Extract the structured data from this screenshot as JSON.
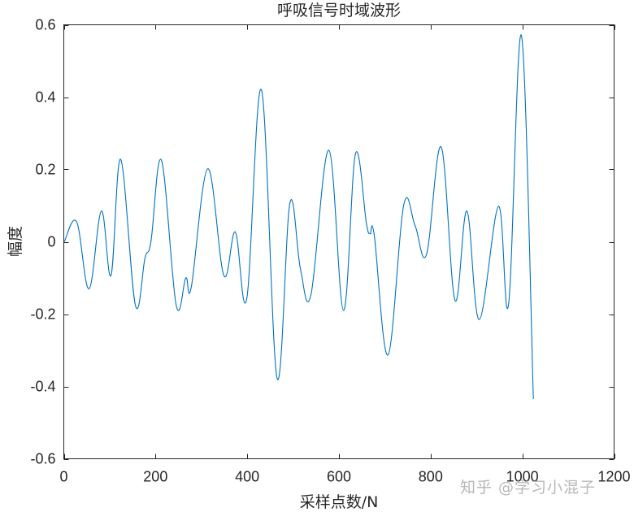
{
  "chart_data": {
    "type": "line",
    "title": "呼吸信号时域波形",
    "xlabel": "采样点数/N",
    "ylabel": "幅度",
    "xlim": [
      0,
      1200
    ],
    "ylim": [
      -0.6,
      0.6
    ],
    "xticks": [
      0,
      200,
      400,
      600,
      800,
      1000,
      1200
    ],
    "yticks": [
      -0.6,
      -0.4,
      -0.2,
      0,
      0.2,
      0.4,
      0.6
    ],
    "xtick_labels": [
      "0",
      "200",
      "400",
      "600",
      "800",
      "1000",
      "1200"
    ],
    "ytick_labels": [
      "-0.6",
      "-0.4",
      "-0.2",
      "0",
      "0.2",
      "0.4",
      "0.6"
    ],
    "grid": false,
    "legend": null,
    "series": [
      {
        "name": "呼吸信号",
        "color": "#0072BD",
        "x": [
          1,
          28,
          55,
          82,
          103,
          124,
          156,
          177,
          190,
          213,
          245,
          266,
          278,
          314,
          349,
          374,
          399,
          431,
          465,
          493,
          516,
          539,
          578,
          610,
          636,
          660,
          668,
          677,
          707,
          741,
          766,
          791,
          823,
          853,
          879,
          906,
          948,
          970,
          998,
          1024
        ],
        "y": [
          0.0,
          0.055,
          -0.13,
          0.085,
          -0.093,
          0.228,
          -0.175,
          -0.045,
          0.0,
          0.225,
          -0.175,
          -0.1,
          -0.125,
          0.202,
          -0.093,
          0.027,
          -0.157,
          0.42,
          -0.377,
          0.107,
          -0.075,
          -0.146,
          0.253,
          -0.19,
          0.243,
          0.05,
          0.022,
          0.018,
          -0.313,
          0.1,
          0.045,
          -0.035,
          0.262,
          -0.162,
          0.085,
          -0.215,
          0.098,
          -0.172,
          0.57,
          -0.435
        ]
      }
    ]
  },
  "watermark": "知乎 @学习小混子"
}
